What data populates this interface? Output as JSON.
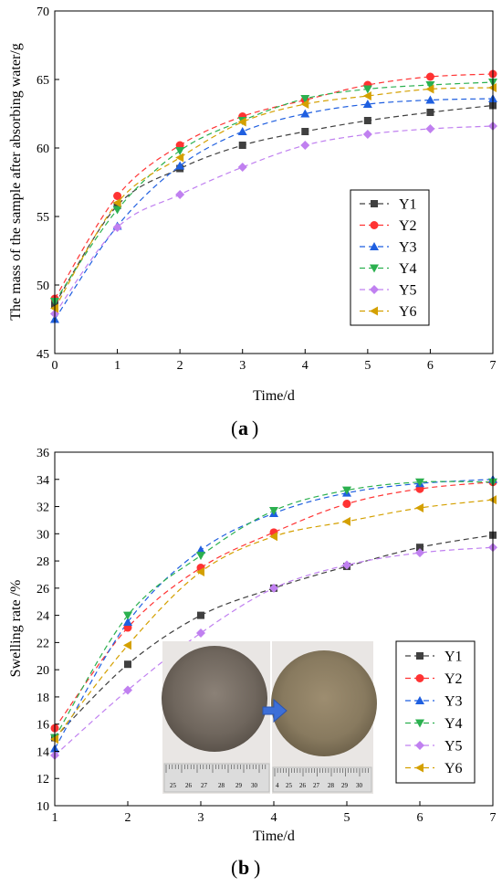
{
  "chart_data": [
    {
      "type": "line",
      "panel_label": "a",
      "title": "",
      "xlabel": "Time/d",
      "ylabel": "The mass of the sample after absorbing water/g",
      "xlim": [
        0,
        7
      ],
      "ylim": [
        45,
        70
      ],
      "xticks": [
        0,
        1,
        2,
        3,
        4,
        5,
        6,
        7
      ],
      "yticks": [
        45,
        50,
        55,
        60,
        65,
        70
      ],
      "legend_position": "right-middle",
      "grid": false,
      "x": [
        0,
        1,
        2,
        3,
        4,
        5,
        6,
        7
      ],
      "series": [
        {
          "name": "Y1",
          "color": "#404040",
          "marker": "square",
          "values": [
            48.6,
            55.8,
            58.5,
            60.2,
            61.2,
            62.0,
            62.6,
            63.1
          ]
        },
        {
          "name": "Y2",
          "color": "#ff3333",
          "marker": "circle",
          "values": [
            49.0,
            56.5,
            60.2,
            62.3,
            63.5,
            64.6,
            65.2,
            65.4
          ]
        },
        {
          "name": "Y3",
          "color": "#1f5fe0",
          "marker": "triangle-up",
          "values": [
            47.5,
            54.3,
            58.7,
            61.2,
            62.5,
            63.2,
            63.5,
            63.6
          ]
        },
        {
          "name": "Y4",
          "color": "#2bb04f",
          "marker": "triangle-down",
          "values": [
            48.8,
            55.5,
            59.8,
            62.0,
            63.6,
            64.3,
            64.6,
            64.8
          ]
        },
        {
          "name": "Y5",
          "color": "#c080f0",
          "marker": "diamond",
          "values": [
            47.9,
            54.2,
            56.6,
            58.6,
            60.2,
            61.0,
            61.4,
            61.6
          ]
        },
        {
          "name": "Y6",
          "color": "#d4a000",
          "marker": "triangle-left",
          "values": [
            48.3,
            56.0,
            59.3,
            61.9,
            63.2,
            63.8,
            64.3,
            64.4
          ]
        }
      ]
    },
    {
      "type": "line",
      "panel_label": "b",
      "title": "",
      "xlabel": "Time/d",
      "ylabel": "Swelling rate /%",
      "xlim": [
        1,
        7
      ],
      "ylim": [
        10,
        36
      ],
      "xticks": [
        1,
        2,
        3,
        4,
        5,
        6,
        7
      ],
      "yticks": [
        10,
        12,
        14,
        16,
        18,
        20,
        22,
        24,
        26,
        28,
        30,
        32,
        34,
        36
      ],
      "legend_position": "right-lower",
      "grid": false,
      "inset_photo": {
        "description_icon": "sample-before-after-photo",
        "ruler_ticks_left": [
          "25",
          "26",
          "27",
          "28",
          "29",
          "30"
        ],
        "ruler_ticks_right": [
          "4",
          "25",
          "26",
          "27",
          "28",
          "29",
          "30"
        ]
      },
      "x": [
        1,
        2,
        3,
        4,
        5,
        6,
        7
      ],
      "series": [
        {
          "name": "Y1",
          "color": "#404040",
          "marker": "square",
          "values": [
            15.0,
            20.4,
            24.0,
            26.0,
            27.6,
            29.0,
            29.9
          ]
        },
        {
          "name": "Y2",
          "color": "#ff3333",
          "marker": "circle",
          "values": [
            15.7,
            23.1,
            27.5,
            30.1,
            32.2,
            33.3,
            33.8
          ]
        },
        {
          "name": "Y3",
          "color": "#1f5fe0",
          "marker": "triangle-up",
          "values": [
            14.2,
            23.5,
            28.8,
            31.5,
            33.0,
            33.7,
            34.0
          ]
        },
        {
          "name": "Y4",
          "color": "#2bb04f",
          "marker": "triangle-down",
          "values": [
            15.0,
            24.0,
            28.4,
            31.7,
            33.2,
            33.8,
            33.8
          ]
        },
        {
          "name": "Y5",
          "color": "#c080f0",
          "marker": "diamond",
          "values": [
            13.7,
            18.5,
            22.7,
            26.0,
            27.7,
            28.6,
            29.0
          ]
        },
        {
          "name": "Y6",
          "color": "#d4a000",
          "marker": "triangle-left",
          "values": [
            14.9,
            21.8,
            27.2,
            29.8,
            30.9,
            31.9,
            32.5
          ]
        }
      ]
    }
  ]
}
